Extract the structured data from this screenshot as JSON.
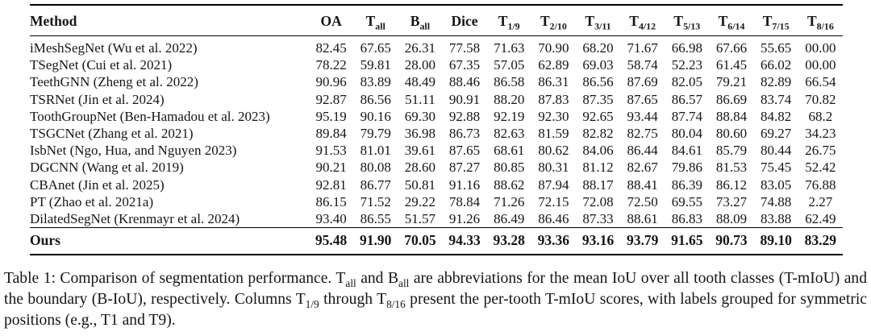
{
  "table": {
    "columns": [
      {
        "text": "Method",
        "sub": ""
      },
      {
        "text": "OA",
        "sub": ""
      },
      {
        "text": "T",
        "sub": "all"
      },
      {
        "text": "B",
        "sub": "all"
      },
      {
        "text": "Dice",
        "sub": ""
      },
      {
        "text": "T",
        "sub": "1/9"
      },
      {
        "text": "T",
        "sub": "2/10"
      },
      {
        "text": "T",
        "sub": "3/11"
      },
      {
        "text": "T",
        "sub": "4/12"
      },
      {
        "text": "T",
        "sub": "5/13"
      },
      {
        "text": "T",
        "sub": "6/14"
      },
      {
        "text": "T",
        "sub": "7/15"
      },
      {
        "text": "T",
        "sub": "8/16"
      }
    ],
    "rows": [
      {
        "method": "iMeshSegNet (Wu et al. 2022)",
        "values": [
          "82.45",
          "67.65",
          "26.31",
          "77.58",
          "71.63",
          "70.90",
          "68.20",
          "71.67",
          "66.98",
          "67.66",
          "55.65",
          "00.00"
        ]
      },
      {
        "method": "TSegNet (Cui et al. 2021)",
        "values": [
          "78.22",
          "59.81",
          "28.00",
          "67.35",
          "57.05",
          "62.89",
          "69.03",
          "58.74",
          "52.23",
          "61.45",
          "66.02",
          "00.00"
        ]
      },
      {
        "method": "TeethGNN (Zheng et al. 2022)",
        "values": [
          "90.96",
          "83.89",
          "48.49",
          "88.46",
          "86.58",
          "86.31",
          "86.56",
          "87.69",
          "82.05",
          "79.21",
          "82.89",
          "66.54"
        ]
      },
      {
        "method": "TSRNet (Jin et al. 2024)",
        "values": [
          "92.87",
          "86.56",
          "51.11",
          "90.91",
          "88.20",
          "87.83",
          "87.35",
          "87.65",
          "86.57",
          "86.69",
          "83.74",
          "70.82"
        ]
      },
      {
        "method": "ToothGroupNet (Ben-Hamadou et al. 2023)",
        "values": [
          "95.19",
          "90.16",
          "69.30",
          "92.88",
          "92.19",
          "92.30",
          "92.65",
          "93.44",
          "87.74",
          "88.84",
          "84.82",
          "68.2"
        ]
      },
      {
        "method": "TSGCNet (Zhang et al. 2021)",
        "values": [
          "89.84",
          "79.79",
          "36.98",
          "86.73",
          "82.63",
          "81.59",
          "82.82",
          "82.75",
          "80.04",
          "80.60",
          "69.27",
          "34.23"
        ]
      },
      {
        "method": "IsbNet (Ngo, Hua, and Nguyen 2023)",
        "values": [
          "91.53",
          "81.01",
          "39.61",
          "87.65",
          "68.61",
          "80.62",
          "84.06",
          "86.44",
          "84.61",
          "85.79",
          "80.44",
          "26.75"
        ]
      },
      {
        "method": "DGCNN (Wang et al. 2019)",
        "values": [
          "90.21",
          "80.08",
          "28.60",
          "87.27",
          "80.85",
          "80.31",
          "81.12",
          "82.67",
          "79.86",
          "81.53",
          "75.45",
          "52.42"
        ]
      },
      {
        "method": "CBAnet (Jin et al. 2025)",
        "values": [
          "92.81",
          "86.77",
          "50.81",
          "91.16",
          "88.62",
          "87.94",
          "88.17",
          "88.41",
          "86.39",
          "86.12",
          "83.05",
          "76.88"
        ]
      },
      {
        "method": "PT (Zhao et al. 2021a)",
        "values": [
          "86.15",
          "71.52",
          "29.22",
          "78.84",
          "71.26",
          "72.15",
          "72.08",
          "72.50",
          "69.55",
          "73.27",
          "74.88",
          "2.27"
        ]
      },
      {
        "method": "DilatedSegNet (Krenmayr et al. 2024)",
        "values": [
          "93.40",
          "86.55",
          "51.57",
          "91.26",
          "86.49",
          "86.46",
          "87.33",
          "88.61",
          "86.83",
          "88.09",
          "83.88",
          "62.49"
        ]
      }
    ],
    "ours_row": {
      "method": "Ours",
      "values": [
        "95.48",
        "91.90",
        "70.05",
        "94.33",
        "93.28",
        "93.36",
        "93.16",
        "93.79",
        "91.65",
        "90.73",
        "89.10",
        "83.29"
      ]
    }
  },
  "caption": {
    "segments": [
      {
        "text": "Table 1: Comparison of segmentation performance. T"
      },
      {
        "sub": "all"
      },
      {
        "text": " and B"
      },
      {
        "sub": "all"
      },
      {
        "text": " are abbreviations for the mean IoU over all tooth classes (T-mIoU) and the boundary (B-IoU), respectively. Columns T"
      },
      {
        "sub": "1/9"
      },
      {
        "text": " through T"
      },
      {
        "sub": "8/16"
      },
      {
        "text": " present the per-tooth T-mIoU scores, with labels grouped for symmetric positions (e.g., T1 and T9)."
      }
    ]
  }
}
